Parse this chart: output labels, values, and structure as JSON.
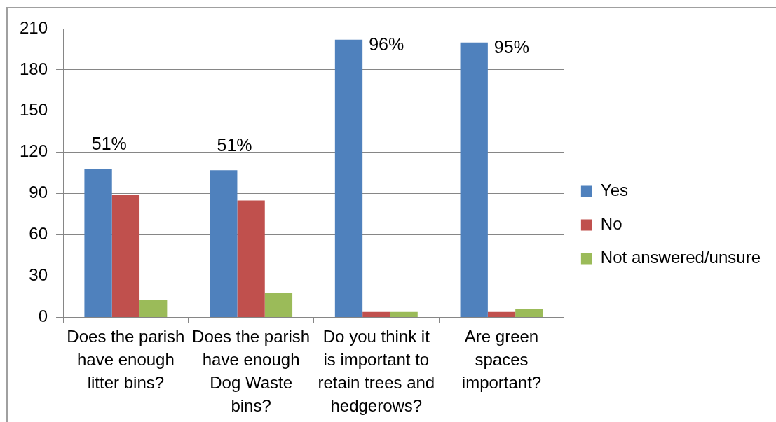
{
  "chart_data": {
    "type": "bar",
    "categories": [
      "Does the parish have enough litter bins?",
      "Does the parish have enough Dog Waste bins?",
      "Do you think it is important to retain trees and hedgerows?",
      "Are green spaces important?"
    ],
    "series": [
      {
        "name": "Yes",
        "color": "#4f81bd",
        "values": [
          108,
          107,
          202,
          200
        ]
      },
      {
        "name": "No",
        "color": "#c0504d",
        "values": [
          89,
          85,
          4,
          4
        ]
      },
      {
        "name": "Not answered/unsure",
        "color": "#9bbb59",
        "values": [
          13,
          18,
          4,
          6
        ]
      }
    ],
    "annotations": [
      "51%",
      "51%",
      "96%",
      "95%"
    ],
    "ylim": [
      0,
      210
    ],
    "yticks": [
      0,
      30,
      60,
      90,
      120,
      150,
      180,
      210
    ],
    "grid": "y",
    "legend": "right"
  }
}
